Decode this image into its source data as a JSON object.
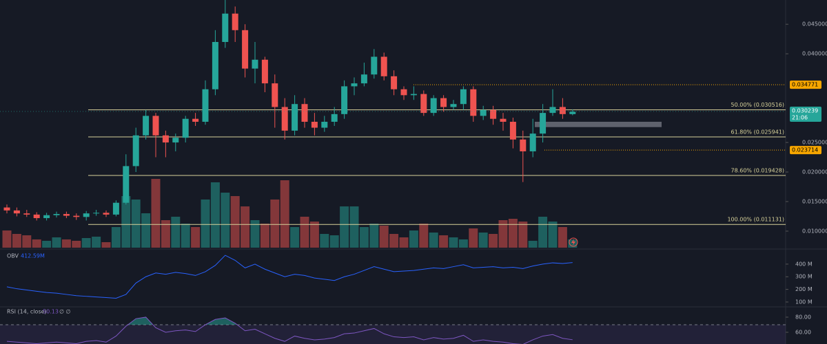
{
  "chart_data": {
    "type": "candlestick",
    "open": [
      0.014,
      0.0135,
      0.013,
      0.0128,
      0.0122,
      0.0127,
      0.0129,
      0.0126,
      0.0124,
      0.013,
      0.0131,
      0.0128,
      0.0148,
      0.021,
      0.0262,
      0.0295,
      0.0262,
      0.025,
      0.0258,
      0.029,
      0.0285,
      0.034,
      0.042,
      0.0468,
      0.044,
      0.0375,
      0.039,
      0.035,
      0.031,
      0.027,
      0.0315,
      0.0285,
      0.0275,
      0.0285,
      0.0298,
      0.0345,
      0.035,
      0.0365,
      0.0395,
      0.0362,
      0.034,
      0.033,
      0.0332,
      0.03,
      0.0325,
      0.031,
      0.0315,
      0.034,
      0.0295,
      0.0305,
      0.029,
      0.0285,
      0.0255,
      0.0235,
      0.0265,
      0.03,
      0.031,
      0.0298
    ],
    "high": [
      0.0145,
      0.014,
      0.0136,
      0.0132,
      0.0131,
      0.0133,
      0.0133,
      0.013,
      0.0134,
      0.0136,
      0.0135,
      0.0152,
      0.023,
      0.0275,
      0.0305,
      0.03,
      0.027,
      0.0265,
      0.0295,
      0.03,
      0.0355,
      0.044,
      0.0495,
      0.048,
      0.045,
      0.042,
      0.0395,
      0.0365,
      0.0325,
      0.033,
      0.0325,
      0.03,
      0.0295,
      0.031,
      0.0355,
      0.036,
      0.0385,
      0.0408,
      0.0402,
      0.0372,
      0.0345,
      0.0345,
      0.0338,
      0.033,
      0.033,
      0.0322,
      0.0345,
      0.0345,
      0.0312,
      0.0312,
      0.03,
      0.0292,
      0.027,
      0.029,
      0.0315,
      0.034,
      0.0325,
      0.0306
    ],
    "low": [
      0.013,
      0.0125,
      0.0124,
      0.0118,
      0.0118,
      0.0123,
      0.0122,
      0.0119,
      0.0118,
      0.0126,
      0.0124,
      0.0125,
      0.0145,
      0.02,
      0.0255,
      0.0225,
      0.0225,
      0.0235,
      0.025,
      0.0278,
      0.028,
      0.033,
      0.041,
      0.042,
      0.036,
      0.035,
      0.0335,
      0.0275,
      0.0255,
      0.0262,
      0.0275,
      0.0262,
      0.0268,
      0.0278,
      0.029,
      0.033,
      0.0345,
      0.0358,
      0.0355,
      0.033,
      0.0322,
      0.0322,
      0.0295,
      0.0295,
      0.0302,
      0.0305,
      0.0305,
      0.0285,
      0.0288,
      0.028,
      0.027,
      0.024,
      0.0183,
      0.0225,
      0.025,
      0.0295,
      0.029,
      0.0296
    ],
    "close": [
      0.0135,
      0.013,
      0.0128,
      0.0122,
      0.0127,
      0.0129,
      0.0126,
      0.0124,
      0.013,
      0.0131,
      0.0128,
      0.0148,
      0.021,
      0.0262,
      0.0295,
      0.0262,
      0.025,
      0.0258,
      0.029,
      0.0285,
      0.034,
      0.042,
      0.0468,
      0.044,
      0.0375,
      0.039,
      0.035,
      0.031,
      0.027,
      0.0315,
      0.0285,
      0.0275,
      0.0285,
      0.0298,
      0.0345,
      0.035,
      0.0365,
      0.0395,
      0.0362,
      0.034,
      0.033,
      0.0332,
      0.03,
      0.0325,
      0.031,
      0.0315,
      0.034,
      0.0295,
      0.0305,
      0.029,
      0.0285,
      0.0255,
      0.0235,
      0.0265,
      0.03,
      0.031,
      0.0298,
      0.0302
    ],
    "up_color": "#26a69a",
    "down_color": "#ef5350",
    "ylim": [
      0.0072,
      0.0491
    ],
    "yticks": [
      {
        "value": 0.045,
        "label": "0.045000"
      },
      {
        "value": 0.04,
        "label": "0.040000"
      },
      {
        "value": 0.025,
        "label": "0.025000"
      },
      {
        "value": 0.02,
        "label": "0.020000"
      },
      {
        "value": 0.015,
        "label": "0.015000"
      },
      {
        "value": 0.01,
        "label": "0.010000"
      }
    ],
    "fib_levels": [
      {
        "value": 0.030516,
        "label": "50.00% (0.030516)"
      },
      {
        "value": 0.025941,
        "label": "61.80% (0.025941)"
      },
      {
        "value": 0.019428,
        "label": "78.60% (0.019428)"
      },
      {
        "value": 0.011131,
        "label": "100.00% (0.011131)"
      }
    ],
    "fib_color": "#d8d29a",
    "price_tags": [
      0.034771,
      0.023714
    ],
    "price_tag_color": "#f7a600",
    "last_price": 0.030239,
    "countdown": "21:06",
    "zone": [
      0.0276,
      0.0285
    ],
    "volume": {
      "ylim": [
        0,
        100
      ],
      "values": [
        25,
        20,
        18,
        12,
        10,
        15,
        12,
        10,
        14,
        16,
        8,
        30,
        75,
        70,
        50,
        100,
        40,
        45,
        35,
        30,
        70,
        95,
        80,
        75,
        60,
        40,
        35,
        70,
        98,
        30,
        45,
        38,
        20,
        18,
        60,
        60,
        30,
        35,
        32,
        20,
        15,
        25,
        35,
        22,
        18,
        15,
        12,
        28,
        22,
        20,
        40,
        42,
        38,
        10,
        45,
        38,
        30,
        12
      ]
    },
    "obv": {
      "title": "OBV",
      "last": {
        "value": 412.59,
        "label": "412.59M"
      },
      "color": "#2962ff",
      "ylim": [
        67,
        503
      ],
      "yticks": [
        {
          "value": 400,
          "label": "400 M"
        },
        {
          "value": 300,
          "label": "300 M"
        },
        {
          "value": 200,
          "label": "200 M"
        },
        {
          "value": 100,
          "label": "100 M"
        }
      ],
      "values": [
        220,
        205,
        195,
        185,
        175,
        170,
        160,
        150,
        145,
        140,
        135,
        130,
        160,
        250,
        300,
        330,
        320,
        335,
        325,
        310,
        340,
        390,
        470,
        430,
        370,
        400,
        360,
        330,
        300,
        320,
        310,
        290,
        280,
        270,
        300,
        320,
        350,
        380,
        360,
        340,
        345,
        350,
        360,
        370,
        365,
        380,
        395,
        370,
        375,
        380,
        370,
        375,
        365,
        385,
        400,
        410,
        405,
        412.59
      ]
    },
    "rsi": {
      "title": "RSI (14, close)",
      "last": 50.13,
      "flags": "∅ ∅",
      "color": "#7e57c2",
      "ylim": [
        44.5,
        92.7
      ],
      "yticks": [
        {
          "value": 80,
          "label": "80.00"
        },
        {
          "value": 60,
          "label": "60.00"
        }
      ],
      "band": [
        30,
        70
      ],
      "values": [
        48,
        47,
        46,
        45,
        46,
        47,
        46,
        45,
        48,
        49,
        47,
        55,
        68,
        78,
        80,
        66,
        60,
        62,
        63,
        61,
        70,
        77,
        79,
        72,
        62,
        64,
        58,
        52,
        48,
        55,
        52,
        50,
        51,
        53,
        58,
        59,
        62,
        65,
        58,
        54,
        53,
        54,
        50,
        53,
        51,
        52,
        56,
        48,
        50,
        48,
        47,
        45,
        44,
        50,
        55,
        57,
        52,
        50.13
      ]
    }
  }
}
